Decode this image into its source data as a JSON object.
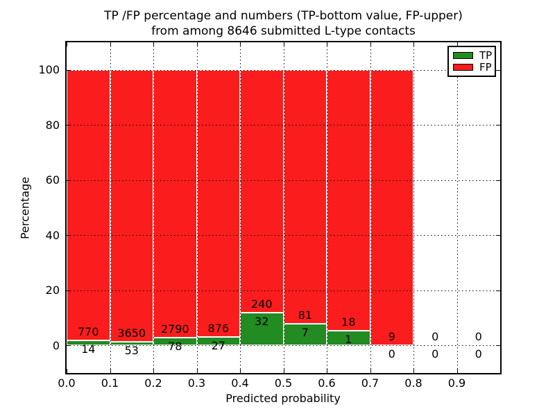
{
  "figure_background": "#ffffff",
  "frame_color": "#000000",
  "chart_data": {
    "type": "bar",
    "stacked": true,
    "title": "TP /FP percentage and numbers (TP-bottom value, FP-upper)",
    "subtitle": "from among 8646 submitted L-type contacts",
    "xlabel": "Predicted probability",
    "ylabel": "Percentage",
    "xlim": [
      0.0,
      1.0
    ],
    "ylim": [
      -10,
      110
    ],
    "xtick_labels": [
      "0.0",
      "0.1",
      "0.2",
      "0.3",
      "0.4",
      "0.5",
      "0.6",
      "0.7",
      "0.8",
      "0.9"
    ],
    "ytick_values": [
      0,
      20,
      40,
      60,
      80,
      100
    ],
    "grid": "dotted",
    "grid_color": "#000000",
    "bar_edge_color": "#ffffff",
    "total_contacts": 8646,
    "bin_edges": [
      0.0,
      0.1,
      0.2,
      0.3,
      0.4,
      0.5,
      0.6,
      0.7,
      0.8,
      0.9,
      1.0
    ],
    "series": [
      {
        "name": "TP",
        "color": "#228B22",
        "counts": [
          14,
          53,
          78,
          27,
          32,
          7,
          1,
          0,
          0,
          0
        ]
      },
      {
        "name": "FP",
        "color": "#FB1D1D",
        "counts": [
          770,
          3650,
          2790,
          876,
          240,
          81,
          18,
          9,
          0,
          0
        ]
      }
    ],
    "tp_percent_per_bin": [
      1.79,
      1.43,
      2.72,
      2.99,
      11.76,
      7.95,
      5.26,
      0.0,
      null,
      null
    ],
    "annotation_note": "FP count printed above green bar top, TP count printed below it",
    "legend": {
      "position": "upper-right",
      "entries": [
        {
          "label": "TP",
          "color": "#228B22"
        },
        {
          "label": "FP",
          "color": "#FB1D1D"
        }
      ]
    }
  }
}
